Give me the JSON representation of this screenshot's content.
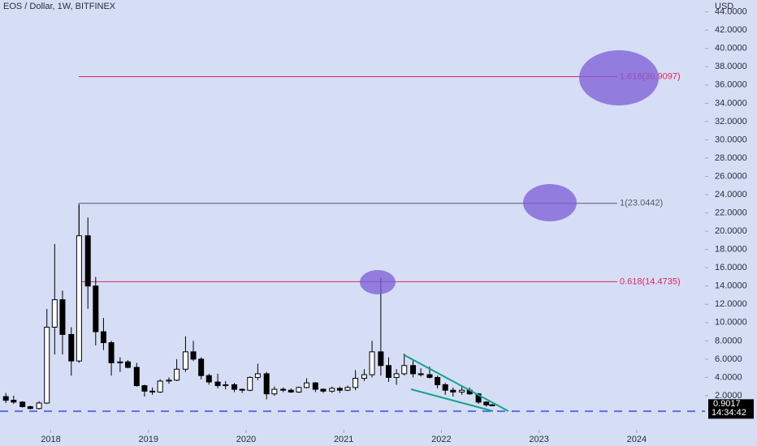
{
  "chart_data": {
    "type": "candlestick",
    "title": "EOS / Dollar, 1W, BITFINEX",
    "y_axis_label": "USD",
    "countdown": "14:34:42",
    "up_color": "#ffffff",
    "down_color": "#000000",
    "grid": false,
    "xlim": [
      2017.48,
      2024.7
    ],
    "xticks": [
      2018,
      2019,
      2020,
      2021,
      2022,
      2023,
      2024
    ],
    "ylim": [
      -1.73,
      45.3
    ],
    "yticks": [
      {
        "value": 2,
        "label": "2.0000"
      },
      {
        "value": 4,
        "label": "4.0000"
      },
      {
        "value": 6,
        "label": "6.0000"
      },
      {
        "value": 8,
        "label": "8.0000"
      },
      {
        "value": 10,
        "label": "10.0000"
      },
      {
        "value": 12,
        "label": "12.0000"
      },
      {
        "value": 14,
        "label": "14.0000"
      },
      {
        "value": 16,
        "label": "16.0000"
      },
      {
        "value": 18,
        "label": "18.0000"
      },
      {
        "value": 20,
        "label": "20.0000"
      },
      {
        "value": 22,
        "label": "22.0000"
      },
      {
        "value": 24,
        "label": "24.0000"
      },
      {
        "value": 26,
        "label": "26.0000"
      },
      {
        "value": 28,
        "label": "28.0000"
      },
      {
        "value": 30,
        "label": "30.0000"
      },
      {
        "value": 32,
        "label": "32.0000"
      },
      {
        "value": 34,
        "label": "34.0000"
      },
      {
        "value": 36,
        "label": "36.0000"
      },
      {
        "value": 38,
        "label": "38.0000"
      },
      {
        "value": 40,
        "label": "40.0000"
      },
      {
        "value": 42,
        "label": "42.0000"
      },
      {
        "value": 44,
        "label": "44.0000"
      }
    ],
    "levels": [
      {
        "label": "1.618(36.9097)",
        "value": 36.9097,
        "color": "#e0245e"
      },
      {
        "label": "1(23.0442)",
        "value": 23.0442,
        "color": "#555a66"
      },
      {
        "label": "0.618(14.4735)",
        "value": 14.4735,
        "color": "#e0245e"
      }
    ],
    "support_level": 0.3,
    "support_color": "#5b6cf0",
    "x": [
      2017.54,
      2017.62,
      2017.71,
      2017.79,
      2017.88,
      2017.96,
      2018.04,
      2018.12,
      2018.21,
      2018.29,
      2018.38,
      2018.46,
      2018.54,
      2018.62,
      2018.71,
      2018.79,
      2018.88,
      2018.96,
      2019.04,
      2019.12,
      2019.21,
      2019.29,
      2019.38,
      2019.46,
      2019.54,
      2019.62,
      2019.71,
      2019.79,
      2019.88,
      2019.96,
      2020.04,
      2020.12,
      2020.21,
      2020.29,
      2020.38,
      2020.46,
      2020.54,
      2020.62,
      2020.71,
      2020.79,
      2020.88,
      2020.96,
      2021.04,
      2021.12,
      2021.21,
      2021.29,
      2021.38,
      2021.46,
      2021.54,
      2021.62,
      2021.71,
      2021.79,
      2021.88,
      2021.96,
      2022.04,
      2022.12,
      2022.21,
      2022.29,
      2022.38,
      2022.46,
      2022.52
    ],
    "open": [
      1.9,
      1.5,
      1.3,
      0.8,
      0.6,
      1.2,
      9.5,
      12.5,
      8.7,
      5.8,
      19.5,
      14.0,
      9.0,
      7.8,
      5.6,
      5.7,
      5.1,
      3.1,
      2.5,
      2.4,
      3.6,
      3.7,
      4.9,
      6.8,
      6.0,
      4.2,
      3.5,
      3.1,
      3.2,
      2.7,
      2.6,
      4.0,
      4.4,
      2.2,
      2.7,
      2.6,
      2.4,
      2.9,
      3.4,
      2.7,
      2.5,
      2.8,
      2.6,
      2.9,
      3.9,
      4.3,
      6.8,
      5.3,
      4.0,
      4.4,
      5.3,
      4.4,
      4.3,
      4.0,
      3.2,
      2.6,
      2.4,
      2.6,
      2.2,
      1.3,
      1.0
    ],
    "high": [
      2.3,
      2.0,
      1.4,
      0.9,
      1.4,
      11.5,
      18.6,
      13.5,
      9.5,
      22.9,
      21.5,
      15.0,
      10.5,
      8.0,
      6.2,
      5.9,
      5.6,
      3.2,
      2.9,
      3.8,
      4.0,
      6.0,
      8.5,
      8.0,
      6.2,
      4.4,
      4.4,
      3.6,
      3.4,
      2.8,
      4.1,
      5.5,
      4.6,
      3.0,
      2.9,
      2.8,
      3.0,
      3.9,
      3.5,
      2.8,
      3.0,
      3.0,
      3.1,
      4.8,
      4.9,
      8.0,
      14.9,
      6.2,
      4.9,
      6.6,
      6.0,
      5.0,
      5.2,
      4.2,
      3.4,
      2.9,
      3.0,
      2.9,
      2.3,
      1.4,
      1.1
    ],
    "low": [
      1.2,
      1.1,
      0.7,
      0.5,
      0.5,
      1.1,
      6.5,
      6.5,
      4.2,
      5.6,
      11.5,
      7.5,
      7.0,
      4.2,
      4.6,
      5.0,
      3.0,
      1.9,
      2.1,
      2.3,
      3.3,
      3.6,
      4.6,
      5.8,
      3.8,
      3.2,
      2.8,
      2.7,
      2.4,
      2.3,
      2.5,
      3.7,
      1.6,
      2.0,
      2.4,
      2.3,
      2.3,
      2.8,
      2.4,
      2.3,
      2.3,
      2.3,
      2.5,
      2.6,
      3.6,
      4.0,
      4.2,
      3.5,
      3.2,
      4.2,
      4.0,
      4.1,
      3.9,
      2.8,
      2.1,
      1.9,
      2.1,
      2.1,
      1.1,
      0.8,
      0.9
    ],
    "close": [
      1.5,
      1.3,
      0.8,
      0.6,
      1.2,
      9.5,
      12.5,
      8.7,
      5.8,
      19.5,
      14.0,
      9.0,
      7.8,
      5.6,
      5.7,
      5.1,
      3.1,
      2.5,
      2.4,
      3.6,
      3.7,
      4.9,
      6.8,
      6.0,
      4.2,
      3.5,
      3.1,
      3.2,
      2.7,
      2.6,
      4.0,
      4.4,
      2.2,
      2.7,
      2.6,
      2.4,
      2.9,
      3.4,
      2.7,
      2.5,
      2.8,
      2.6,
      2.9,
      3.9,
      4.3,
      6.8,
      5.3,
      4.0,
      4.4,
      5.3,
      4.4,
      4.3,
      4.0,
      3.2,
      2.6,
      2.4,
      2.6,
      2.2,
      1.3,
      1.0,
      0.9017
    ]
  }
}
